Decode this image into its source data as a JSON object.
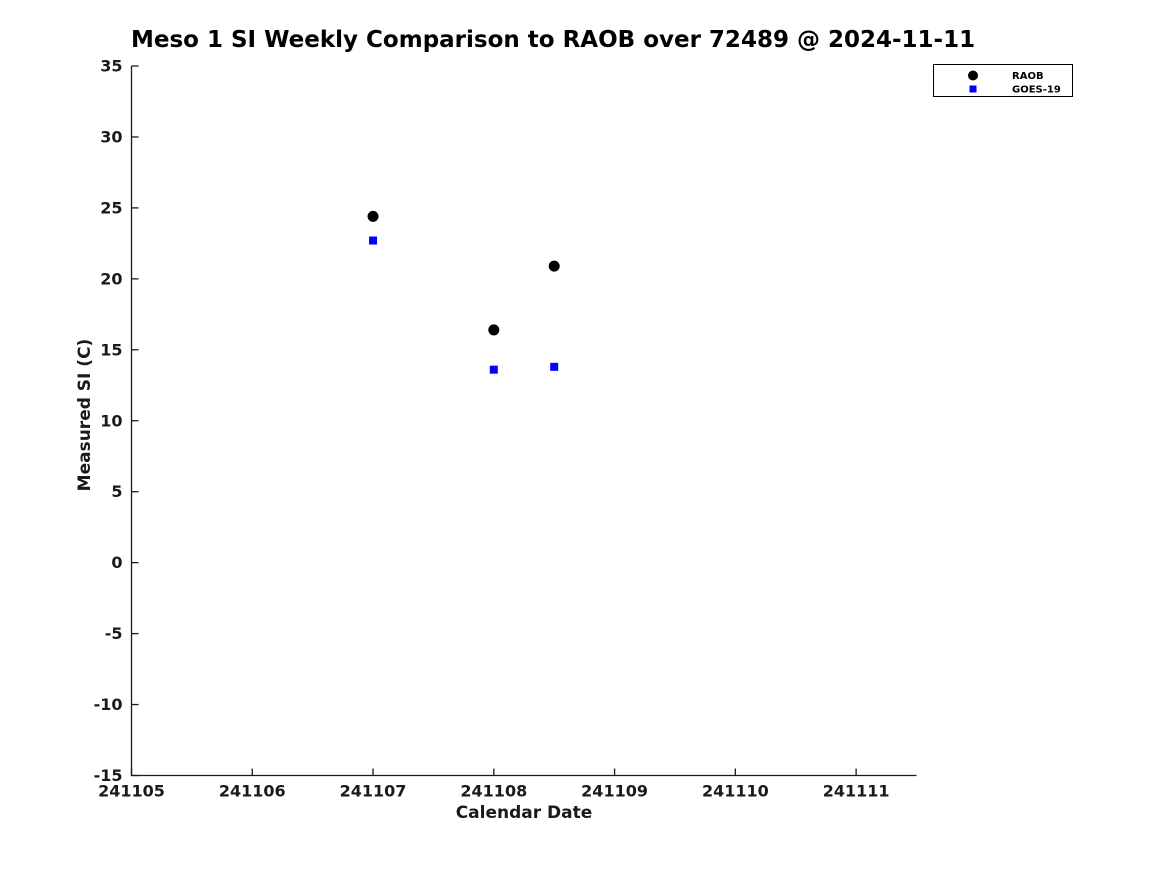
{
  "chart_data": {
    "type": "scatter",
    "title": "Meso 1 SI Weekly Comparison to RAOB over 72489 @ 2024-11-11",
    "xlabel": "Calendar Date",
    "ylabel": "Measured SI (C)",
    "xlim": [
      241105,
      241111.5
    ],
    "ylim": [
      -15,
      35
    ],
    "x_ticks": [
      241105,
      241106,
      241107,
      241108,
      241109,
      241110,
      241111
    ],
    "y_ticks": [
      35,
      30,
      25,
      20,
      15,
      10,
      5,
      0,
      -5,
      -10,
      -15
    ],
    "grid": false,
    "tick_direction": "in",
    "axis_color": "#1a1a1a",
    "background_color": "#ffffff",
    "legend": {
      "position": "top-right",
      "border_color": "#000000"
    },
    "series": [
      {
        "name": "RAOB",
        "marker": "circle",
        "color": "#000000",
        "marker_size": 11,
        "points": [
          {
            "x": 241107,
            "y": 24.4
          },
          {
            "x": 241108,
            "y": 16.4
          },
          {
            "x": 241108.5,
            "y": 20.9
          }
        ]
      },
      {
        "name": "GOES-19",
        "marker": "square",
        "color": "#0000ff",
        "marker_size": 8,
        "points": [
          {
            "x": 241107,
            "y": 22.7
          },
          {
            "x": 241108,
            "y": 13.6
          },
          {
            "x": 241108.5,
            "y": 13.8
          }
        ]
      }
    ]
  }
}
